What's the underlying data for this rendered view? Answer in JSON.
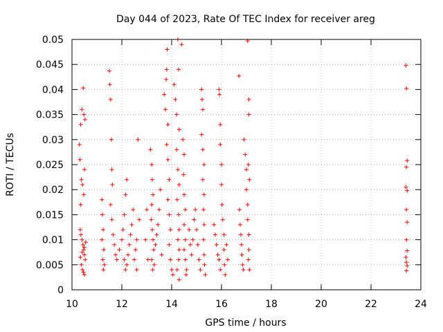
{
  "chart_data": {
    "type": "scatter",
    "title": "Day 044 of 2023, Rate Of TEC Index for receiver areg",
    "xlabel": "GPS time / hours",
    "ylabel": "ROTI / TECUs",
    "xlim": [
      10,
      24
    ],
    "ylim": [
      0,
      0.05
    ],
    "x_ticks": [
      10,
      12,
      14,
      16,
      18,
      20,
      22,
      24
    ],
    "x_tick_labels": [
      "10",
      "12",
      "14",
      "16",
      "18",
      "20",
      "22",
      "24"
    ],
    "y_ticks": [
      0,
      0.005,
      0.01,
      0.015,
      0.02,
      0.025,
      0.03,
      0.035,
      0.04,
      0.045,
      0.05
    ],
    "y_tick_labels": [
      "0",
      "0.005",
      "0.01",
      "0.015",
      "0.02",
      "0.025",
      "0.03",
      "0.035",
      "0.04",
      "0.045",
      "0.05"
    ],
    "grid": true,
    "marker": "+",
    "color": "#ff0000",
    "series": [
      {
        "points": [
          [
            10.3,
            0.029
          ],
          [
            10.35,
            0.033
          ],
          [
            10.4,
            0.036
          ],
          [
            10.45,
            0.0403
          ],
          [
            10.48,
            0.035
          ],
          [
            10.52,
            0.034
          ],
          [
            10.32,
            0.026
          ],
          [
            10.38,
            0.022
          ],
          [
            10.42,
            0.021
          ],
          [
            10.47,
            0.019
          ],
          [
            10.35,
            0.017
          ],
          [
            10.5,
            0.024
          ],
          [
            10.33,
            0.012
          ],
          [
            10.36,
            0.011
          ],
          [
            10.4,
            0.01
          ],
          [
            10.44,
            0.009
          ],
          [
            10.47,
            0.008
          ],
          [
            10.5,
            0.007
          ],
          [
            10.53,
            0.006
          ],
          [
            10.38,
            0.005
          ],
          [
            10.42,
            0.004
          ],
          [
            10.46,
            0.0035
          ],
          [
            10.5,
            0.003
          ],
          [
            10.34,
            0.0065
          ],
          [
            10.41,
            0.0075
          ],
          [
            10.49,
            0.0085
          ],
          [
            10.55,
            0.0095
          ],
          [
            11.2,
            0.018
          ],
          [
            11.22,
            0.015
          ],
          [
            11.25,
            0.012
          ],
          [
            11.2,
            0.01
          ],
          [
            11.28,
            0.008
          ],
          [
            11.24,
            0.006
          ],
          [
            11.26,
            0.004
          ],
          [
            11.3,
            0.005
          ],
          [
            11.5,
            0.0437
          ],
          [
            11.52,
            0.041
          ],
          [
            11.55,
            0.038
          ],
          [
            11.58,
            0.03
          ],
          [
            11.6,
            0.024
          ],
          [
            11.62,
            0.021
          ],
          [
            11.55,
            0.017
          ],
          [
            11.6,
            0.014
          ],
          [
            11.65,
            0.011
          ],
          [
            11.7,
            0.009
          ],
          [
            11.75,
            0.007
          ],
          [
            11.8,
            0.006
          ],
          [
            11.9,
            0.008
          ],
          [
            12.0,
            0.01
          ],
          [
            12.05,
            0.012
          ],
          [
            12.1,
            0.015
          ],
          [
            12.15,
            0.019
          ],
          [
            12.2,
            0.022
          ],
          [
            12.1,
            0.006
          ],
          [
            12.15,
            0.004
          ],
          [
            12.2,
            0.005
          ],
          [
            12.25,
            0.007
          ],
          [
            12.3,
            0.009
          ],
          [
            12.35,
            0.011
          ],
          [
            12.4,
            0.013
          ],
          [
            12.45,
            0.016
          ],
          [
            12.5,
            0.006
          ],
          [
            12.55,
            0.008
          ],
          [
            12.6,
            0.01
          ],
          [
            12.65,
            0.03
          ],
          [
            12.7,
            0.014
          ],
          [
            12.6,
            0.004
          ],
          [
            12.95,
            0.01
          ],
          [
            13.0,
            0.016
          ],
          [
            13.05,
            0.006
          ],
          [
            13.15,
            0.028
          ],
          [
            13.2,
            0.025
          ],
          [
            13.22,
            0.022
          ],
          [
            13.25,
            0.019
          ],
          [
            13.2,
            0.017
          ],
          [
            13.18,
            0.014
          ],
          [
            13.22,
            0.012
          ],
          [
            13.25,
            0.01
          ],
          [
            13.28,
            0.008
          ],
          [
            13.2,
            0.006
          ],
          [
            13.24,
            0.004
          ],
          [
            13.3,
            0.005
          ],
          [
            13.35,
            0.009
          ],
          [
            13.4,
            0.011
          ],
          [
            13.45,
            0.013
          ],
          [
            13.5,
            0.016
          ],
          [
            13.55,
            0.02
          ],
          [
            13.6,
            0.007
          ],
          [
            13.7,
            0.039
          ],
          [
            13.75,
            0.036
          ],
          [
            13.78,
            0.042
          ],
          [
            13.8,
            0.044
          ],
          [
            13.82,
            0.048
          ],
          [
            13.85,
            0.033
          ],
          [
            13.8,
            0.029
          ],
          [
            13.85,
            0.026
          ],
          [
            13.9,
            0.022
          ],
          [
            13.85,
            0.018
          ],
          [
            13.9,
            0.015
          ],
          [
            13.95,
            0.012
          ],
          [
            13.9,
            0.009
          ],
          [
            13.95,
            0.006
          ],
          [
            14.0,
            0.004
          ],
          [
            14.05,
            0.003
          ],
          [
            14.1,
            0.041
          ],
          [
            14.15,
            0.038
          ],
          [
            14.2,
            0.035
          ],
          [
            14.25,
            0.05
          ],
          [
            14.28,
            0.044
          ],
          [
            14.3,
            0.032
          ],
          [
            14.2,
            0.028
          ],
          [
            14.25,
            0.024
          ],
          [
            14.3,
            0.021
          ],
          [
            14.22,
            0.018
          ],
          [
            14.28,
            0.015
          ],
          [
            14.3,
            0.012
          ],
          [
            14.25,
            0.01
          ],
          [
            14.3,
            0.008
          ],
          [
            14.28,
            0.006
          ],
          [
            14.22,
            0.004
          ],
          [
            14.3,
            0.002
          ],
          [
            14.4,
            0.049
          ],
          [
            14.45,
            0.03
          ],
          [
            14.5,
            0.027
          ],
          [
            14.48,
            0.023
          ],
          [
            14.5,
            0.019
          ],
          [
            14.55,
            0.016
          ],
          [
            14.5,
            0.013
          ],
          [
            14.55,
            0.01
          ],
          [
            14.5,
            0.008
          ],
          [
            14.55,
            0.006
          ],
          [
            14.6,
            0.004
          ],
          [
            14.58,
            0.003
          ],
          [
            14.7,
            0.012
          ],
          [
            14.75,
            0.009
          ],
          [
            14.8,
            0.007
          ],
          [
            14.85,
            0.01
          ],
          [
            14.9,
            0.014
          ],
          [
            14.95,
            0.016
          ],
          [
            15.0,
            0.012
          ],
          [
            15.05,
            0.009
          ],
          [
            15.1,
            0.006
          ],
          [
            15.15,
            0.004
          ],
          [
            15.2,
            0.04
          ],
          [
            15.22,
            0.038
          ],
          [
            15.25,
            0.036
          ],
          [
            15.2,
            0.031
          ],
          [
            15.25,
            0.028
          ],
          [
            15.3,
            0.025
          ],
          [
            15.25,
            0.022
          ],
          [
            15.3,
            0.019
          ],
          [
            15.28,
            0.016
          ],
          [
            15.3,
            0.013
          ],
          [
            15.28,
            0.01
          ],
          [
            15.3,
            0.007
          ],
          [
            15.32,
            0.005
          ],
          [
            15.35,
            0.003
          ],
          [
            15.7,
            0.013
          ],
          [
            15.75,
            0.011
          ],
          [
            15.8,
            0.009
          ],
          [
            15.85,
            0.007
          ],
          [
            15.9,
            0.006
          ],
          [
            15.95,
            0.004
          ],
          [
            15.9,
            0.04
          ],
          [
            15.92,
            0.039
          ],
          [
            15.95,
            0.033
          ],
          [
            15.95,
            0.029
          ],
          [
            16.0,
            0.025
          ],
          [
            16.0,
            0.021
          ],
          [
            16.02,
            0.017
          ],
          [
            16.05,
            0.014
          ],
          [
            16.1,
            0.011
          ],
          [
            16.1,
            0.008
          ],
          [
            16.12,
            0.005
          ],
          [
            16.15,
            0.003
          ],
          [
            16.2,
            0.009
          ],
          [
            16.25,
            0.006
          ],
          [
            16.7,
            0.0427
          ],
          [
            16.72,
            0.016
          ],
          [
            16.75,
            0.013
          ],
          [
            16.78,
            0.011
          ],
          [
            16.8,
            0.009
          ],
          [
            16.82,
            0.007
          ],
          [
            16.85,
            0.005
          ],
          [
            16.88,
            0.004
          ],
          [
            16.9,
            0.03
          ],
          [
            16.95,
            0.027
          ],
          [
            17.0,
            0.024
          ],
          [
            17.0,
            0.02
          ],
          [
            17.05,
            0.017
          ],
          [
            17.05,
            0.014
          ],
          [
            17.1,
            0.011
          ],
          [
            17.1,
            0.008
          ],
          [
            17.08,
            0.006
          ],
          [
            17.12,
            0.004
          ],
          [
            17.05,
            0.0497
          ],
          [
            17.1,
            0.038
          ],
          [
            17.1,
            0.035
          ],
          [
            17.08,
            0.025
          ],
          [
            17.12,
            0.022
          ],
          [
            23.4,
            0.0448
          ],
          [
            23.42,
            0.0402
          ],
          [
            23.45,
            0.0258
          ],
          [
            23.42,
            0.0245
          ],
          [
            23.4,
            0.0205
          ],
          [
            23.45,
            0.0198
          ],
          [
            23.42,
            0.016
          ],
          [
            23.45,
            0.0135
          ],
          [
            23.42,
            0.01
          ],
          [
            23.45,
            0.0078
          ],
          [
            23.4,
            0.0065
          ],
          [
            23.42,
            0.0055
          ],
          [
            23.45,
            0.0048
          ],
          [
            23.42,
            0.0038
          ]
        ]
      }
    ]
  }
}
